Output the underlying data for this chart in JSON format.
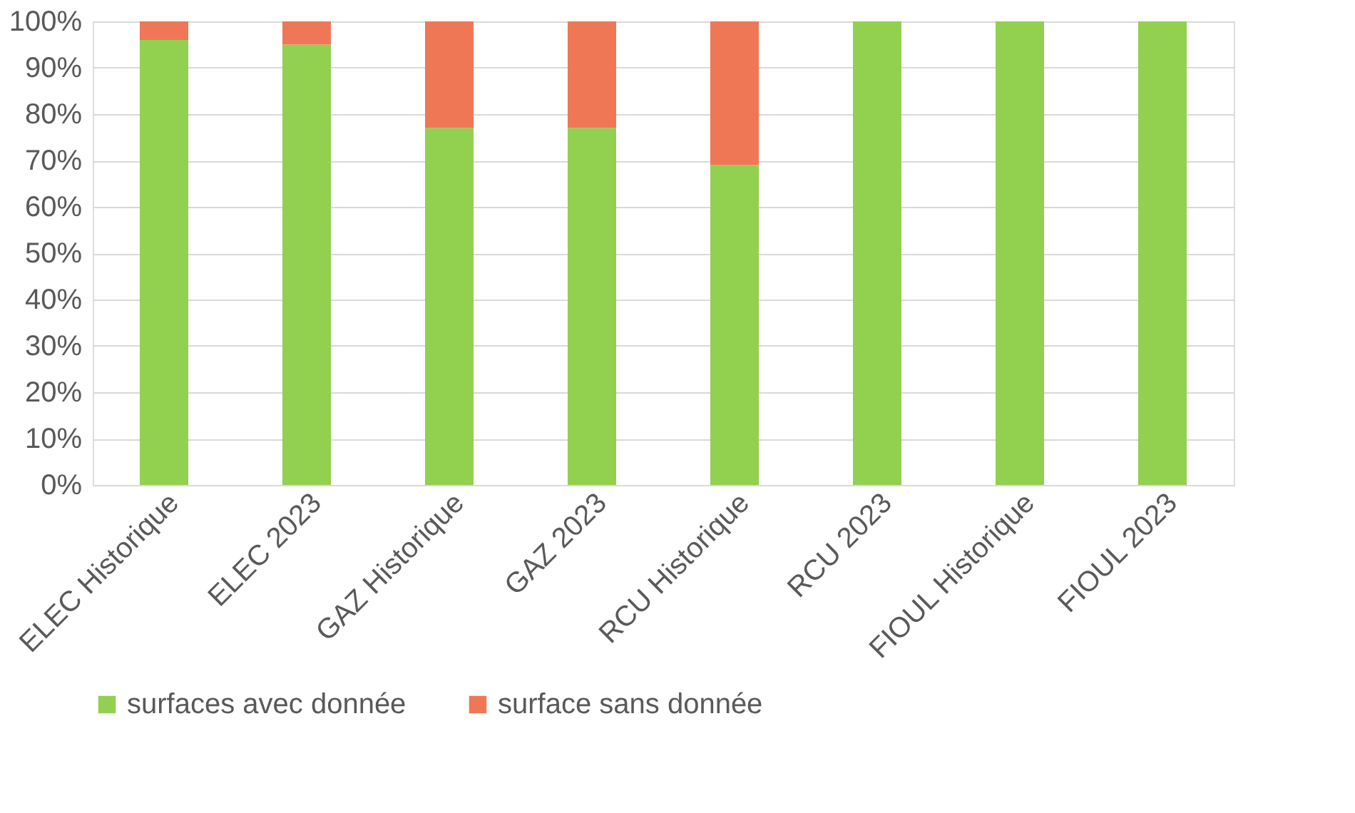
{
  "chart_data": {
    "type": "bar",
    "stacked": true,
    "categories": [
      "ELEC Historique",
      "ELEC 2023",
      "GAZ Historique",
      "GAZ 2023",
      "RCU Historique",
      "RCU 2023",
      "FIOUL Historique",
      "FIOUL 2023"
    ],
    "series": [
      {
        "name": "surfaces avec donnée",
        "color": "#92d050",
        "values": [
          96,
          95,
          77,
          77,
          69,
          100,
          100,
          100
        ]
      },
      {
        "name": "surface sans donnée",
        "color": "#ef7756",
        "values": [
          4,
          5,
          23,
          23,
          31,
          0,
          0,
          0
        ]
      }
    ],
    "ylim": [
      0,
      100
    ],
    "yticks": [
      {
        "value": 0,
        "label": "0%"
      },
      {
        "value": 10,
        "label": "10%"
      },
      {
        "value": 20,
        "label": "20%"
      },
      {
        "value": 30,
        "label": "30%"
      },
      {
        "value": 40,
        "label": "40%"
      },
      {
        "value": 50,
        "label": "50%"
      },
      {
        "value": 60,
        "label": "60%"
      },
      {
        "value": 70,
        "label": "70%"
      },
      {
        "value": 80,
        "label": "80%"
      },
      {
        "value": 90,
        "label": "90%"
      },
      {
        "value": 100,
        "label": "100%"
      }
    ],
    "grid": "y",
    "legend": "bottom"
  }
}
